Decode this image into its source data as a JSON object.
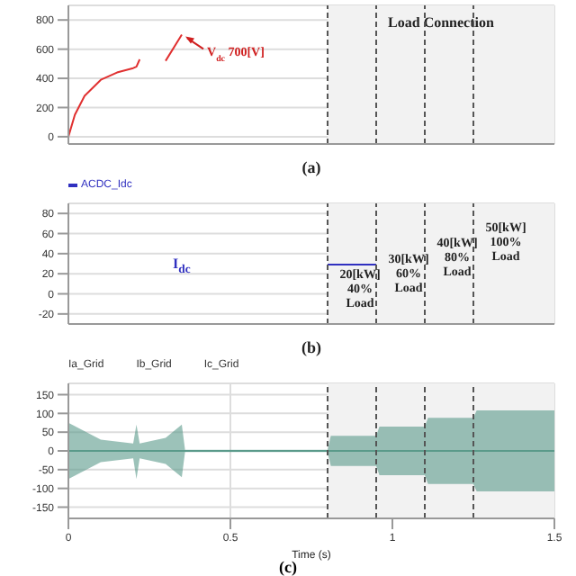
{
  "chart_data": [
    {
      "type": "line",
      "xlabel": "(a)",
      "xlim": [
        0,
        1.5
      ],
      "xticks": [
        0,
        0.5,
        1,
        1.5
      ],
      "ylim": [
        -50,
        900
      ],
      "yticks": [
        0,
        200,
        400,
        600,
        800
      ],
      "grid": true,
      "tick_labels": "y",
      "series": [
        {
          "color": "#e03030",
          "x": [
            0,
            0.02,
            0.05,
            0.1,
            0.15,
            0.2,
            0.21,
            0.22,
            0.26,
            0.3,
            0.35
          ],
          "values": [
            0,
            150,
            280,
            390,
            440,
            470,
            480,
            530,
            null,
            520,
            700
          ]
        }
      ],
      "bands": [
        {
          "axis": "x",
          "from": 0.8,
          "to": 1.5,
          "color": "#f2f2f2",
          "label": "Load Connection"
        }
      ],
      "ref_lines": [
        {
          "axis": "x",
          "value": 0.8,
          "line_style": "dashed",
          "color": "#555555"
        },
        {
          "axis": "x",
          "value": 0.95,
          "line_style": "dashed",
          "color": "#555555"
        },
        {
          "axis": "x",
          "value": 1.1,
          "line_style": "dashed",
          "color": "#555555"
        },
        {
          "axis": "x",
          "value": 1.25,
          "line_style": "dashed",
          "color": "#555555"
        }
      ],
      "annotations": [
        {
          "text": "V$_{dc}$ 700[V]",
          "x": 0.35,
          "y": 700
        }
      ]
    },
    {
      "type": "line",
      "xlabel": "(b)",
      "xlim": [
        0,
        1.5
      ],
      "xticks": [
        0,
        0.5,
        1,
        1.5
      ],
      "ylim": [
        -30,
        90
      ],
      "yticks": [
        -20,
        0,
        20,
        40,
        60,
        80
      ],
      "grid": true,
      "tick_labels": "y",
      "legend": "top left",
      "series": [
        {
          "name": "ACDC_Idc",
          "color": "#3030c0",
          "x": [
            0.8,
            0.95
          ],
          "values": [
            29,
            29
          ]
        }
      ],
      "bands": [
        {
          "axis": "x",
          "from": 0.8,
          "to": 1.5,
          "color": "#f2f2f2"
        }
      ],
      "ref_lines": [
        {
          "axis": "x",
          "value": 0.8,
          "line_style": "dashed",
          "color": "#555555",
          "label": "20[kW]\n40%\nLoad"
        },
        {
          "axis": "x",
          "value": 0.95,
          "line_style": "dashed",
          "color": "#555555",
          "label": "30[kW]\n60%\nLoad"
        },
        {
          "axis": "x",
          "value": 1.1,
          "line_style": "dashed",
          "color": "#555555",
          "label": "40[kW]\n80%\nLoad"
        },
        {
          "axis": "x",
          "value": 1.25,
          "line_style": "dashed",
          "color": "#555555",
          "label": "50[kW]\n100%\nLoad"
        }
      ],
      "annotations": [
        "I$_{dc}$"
      ]
    },
    {
      "type": "line",
      "xlabel": "Time (s)",
      "xlim": [
        0,
        1.5
      ],
      "xticks": [
        0,
        0.5,
        1,
        1.5
      ],
      "ylim": [
        -180,
        180
      ],
      "yticks": [
        -150,
        -100,
        -50,
        0,
        50,
        100,
        150
      ],
      "grid": true,
      "series": [
        {
          "color": "#5a9a8a",
          "x": [
            0,
            0.1,
            0.2,
            0.21,
            0.22,
            0.3,
            0.35,
            0.36,
            0.8,
            0.81,
            0.95,
            0.96,
            1.1,
            1.11,
            1.25,
            1.26,
            1.5
          ],
          "values": [
            0,
            0,
            0,
            0,
            0,
            0,
            0,
            0,
            0,
            0,
            0,
            0,
            0,
            0,
            0,
            0,
            0
          ],
          "lower": [
            -75,
            -30,
            -20,
            -75,
            -20,
            -35,
            -70,
            -3,
            -3,
            -40,
            -40,
            -65,
            -65,
            -88,
            -88,
            -108,
            -108
          ],
          "upper": [
            75,
            30,
            20,
            70,
            20,
            35,
            70,
            3,
            3,
            40,
            40,
            65,
            65,
            88,
            88,
            108,
            108
          ]
        }
      ],
      "bands": [
        {
          "axis": "x",
          "from": 0.8,
          "to": 1.5,
          "color": "#f2f2f2"
        }
      ],
      "ref_lines": [
        {
          "axis": "x",
          "value": 0.8,
          "line_style": "dashed",
          "color": "#555555"
        },
        {
          "axis": "x",
          "value": 0.95,
          "line_style": "dashed",
          "color": "#555555"
        },
        {
          "axis": "x",
          "value": 1.1,
          "line_style": "dashed",
          "color": "#555555"
        },
        {
          "axis": "x",
          "value": 1.25,
          "line_style": "dashed",
          "color": "#555555"
        }
      ],
      "annotations": [
        "Ia_Grid",
        "Ib_Grid",
        "Ic_Grid",
        "(c)"
      ]
    }
  ]
}
